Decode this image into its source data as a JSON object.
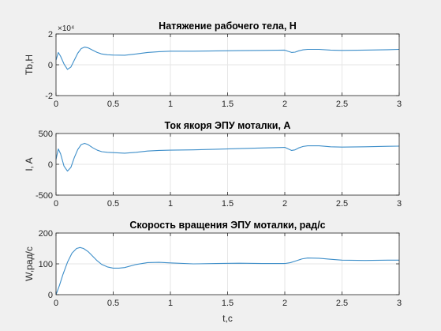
{
  "colors": {
    "background": "#f0f0f0",
    "axes_bg": "#ffffff",
    "line": "#3d8ec9",
    "grid": "#e6e6e6",
    "axis": "#262626"
  },
  "chart_data": [
    {
      "type": "line",
      "title": "Натяжение рабочего тела, Н",
      "xlabel": "",
      "ylabel": "Tb,Н",
      "xlim": [
        0,
        3
      ],
      "ylim": [
        -2,
        2
      ],
      "y_multiplier_label": "×10⁴",
      "xticks": [
        "0",
        "0.5",
        "1",
        "1.5",
        "2",
        "2.5",
        "3"
      ],
      "yticks": [
        "-2",
        "0",
        "2"
      ],
      "grid": true,
      "series": [
        {
          "x": [
            0,
            0.02,
            0.04,
            0.07,
            0.1,
            0.13,
            0.16,
            0.19,
            0.22,
            0.25,
            0.28,
            0.32,
            0.36,
            0.4,
            0.45,
            0.5,
            0.6,
            0.7,
            0.8,
            0.9,
            1.0,
            1.2,
            1.4,
            1.6,
            1.8,
            2.0,
            2.03,
            2.06,
            2.09,
            2.12,
            2.16,
            2.2,
            2.3,
            2.4,
            2.5,
            2.7,
            2.9,
            3.0
          ],
          "y": [
            0.3,
            0.8,
            0.55,
            0.05,
            -0.3,
            -0.15,
            0.3,
            0.75,
            1.05,
            1.15,
            1.1,
            0.95,
            0.8,
            0.7,
            0.65,
            0.63,
            0.62,
            0.7,
            0.8,
            0.85,
            0.88,
            0.88,
            0.9,
            0.92,
            0.93,
            0.95,
            0.87,
            0.8,
            0.82,
            0.9,
            0.97,
            1.0,
            1.0,
            0.95,
            0.93,
            0.95,
            0.98,
            1.0
          ]
        }
      ]
    },
    {
      "type": "line",
      "title": "Ток якоря  ЭПУ моталки, А",
      "xlabel": "",
      "ylabel": "I, A",
      "xlim": [
        0,
        3
      ],
      "ylim": [
        -500,
        500
      ],
      "xticks": [
        "0",
        "0.5",
        "1",
        "1.5",
        "2",
        "2.5",
        "3"
      ],
      "yticks": [
        "-500",
        "0",
        "500"
      ],
      "grid": true,
      "series": [
        {
          "x": [
            0,
            0.02,
            0.04,
            0.07,
            0.1,
            0.13,
            0.16,
            0.19,
            0.22,
            0.25,
            0.28,
            0.32,
            0.36,
            0.4,
            0.45,
            0.5,
            0.6,
            0.7,
            0.8,
            0.9,
            1.0,
            1.2,
            1.4,
            1.6,
            1.8,
            2.0,
            2.03,
            2.06,
            2.09,
            2.12,
            2.16,
            2.2,
            2.3,
            2.4,
            2.5,
            2.7,
            2.9,
            3.0
          ],
          "y": [
            80,
            250,
            170,
            -30,
            -110,
            -50,
            110,
            240,
            320,
            340,
            320,
            270,
            230,
            205,
            195,
            190,
            180,
            195,
            215,
            225,
            230,
            235,
            245,
            255,
            265,
            275,
            250,
            225,
            235,
            265,
            290,
            300,
            300,
            285,
            280,
            285,
            292,
            295
          ]
        }
      ]
    },
    {
      "type": "line",
      "title": "Скорость вращения ЭПУ моталки, рад/с",
      "xlabel": "t,c",
      "ylabel": "W,рад/с",
      "xlim": [
        0,
        3
      ],
      "ylim": [
        0,
        200
      ],
      "xticks": [
        "0",
        "0.5",
        "1",
        "1.5",
        "2",
        "2.5",
        "3"
      ],
      "yticks": [
        "0",
        "100",
        "200"
      ],
      "grid": true,
      "series": [
        {
          "x": [
            0,
            0.03,
            0.06,
            0.1,
            0.14,
            0.18,
            0.21,
            0.24,
            0.28,
            0.32,
            0.36,
            0.4,
            0.45,
            0.5,
            0.55,
            0.6,
            0.7,
            0.8,
            0.9,
            1.0,
            1.2,
            1.4,
            1.6,
            1.8,
            2.0,
            2.05,
            2.1,
            2.15,
            2.2,
            2.3,
            2.4,
            2.5,
            2.7,
            2.9,
            3.0
          ],
          "y": [
            0,
            30,
            65,
            105,
            135,
            150,
            153,
            150,
            140,
            125,
            110,
            98,
            90,
            86,
            86,
            88,
            98,
            104,
            105,
            103,
            100,
            101,
            102,
            101,
            101,
            104,
            110,
            116,
            119,
            118,
            115,
            112,
            111,
            112,
            112
          ]
        }
      ]
    }
  ]
}
